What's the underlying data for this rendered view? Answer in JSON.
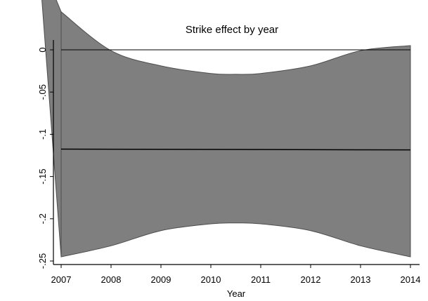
{
  "chart_data": {
    "type": "area",
    "title": "Strike effect by year",
    "xlabel": "Year",
    "ylabel": "",
    "x_ticks": [
      2007,
      2008,
      2009,
      2010,
      2011,
      2012,
      2013,
      2014
    ],
    "x_tick_labels": [
      "2007",
      "2008",
      "2009",
      "2010",
      "2011",
      "2012",
      "2013",
      "2014"
    ],
    "y_ticks": [
      0,
      -0.05,
      -0.1,
      -0.15,
      -0.2,
      -0.25
    ],
    "y_tick_labels": [
      "0",
      "-.05",
      "-.1",
      "-.15",
      "-.2",
      "-.25"
    ],
    "xlim": [
      2006.9,
      2014.1
    ],
    "ylim": [
      -0.252,
      0.012
    ],
    "reference_line": {
      "y": 0
    },
    "estimate_line": {
      "x": [
        2007,
        2014
      ],
      "y": [
        -0.1175,
        -0.1185
      ]
    },
    "confidence_band": {
      "x": [
        2007,
        2008,
        2009,
        2010,
        2010.5,
        2011,
        2012,
        2013,
        2014
      ],
      "upper": [
        0.045,
        -0.001,
        -0.019,
        -0.028,
        -0.029,
        -0.028,
        -0.019,
        -0.001,
        0.005
      ],
      "lower": [
        -0.245,
        -0.232,
        -0.214,
        -0.206,
        -0.205,
        -0.206,
        -0.214,
        -0.232,
        -0.245
      ]
    },
    "extrapolated_band_left": {
      "x": [
        2006.55,
        2007.0
      ],
      "upper": [
        0.11,
        0.045
      ],
      "lower": [
        0.11,
        -0.245
      ]
    },
    "colors": {
      "band_fill": "#7f7f7f",
      "band_edge": "#4d4d4d",
      "estimate_line": "#000000",
      "reference_line": "#000000",
      "axis": "#000000"
    },
    "grid": false
  }
}
